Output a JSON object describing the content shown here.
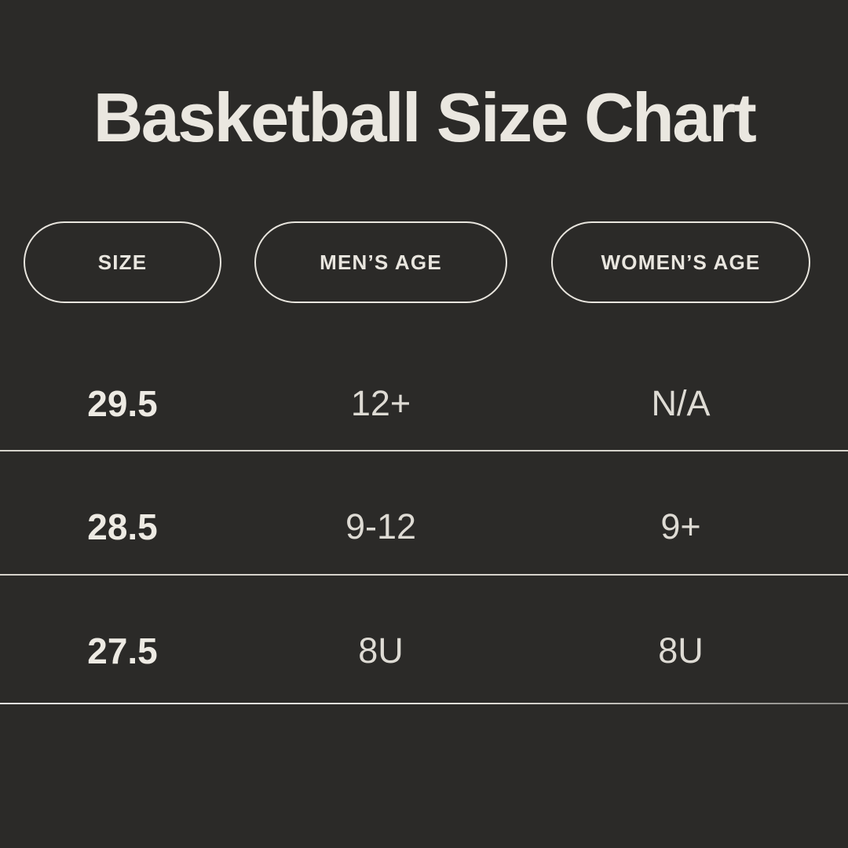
{
  "title": "Basketball Size Chart",
  "columns": [
    {
      "id": "size",
      "label": "SIZE"
    },
    {
      "id": "mens_age",
      "label": "MEN’S AGE"
    },
    {
      "id": "womens_age",
      "label": "WOMEN’S AGE"
    }
  ],
  "rows": [
    {
      "size": "29.5",
      "mens_age": "12+",
      "womens_age": "N/A"
    },
    {
      "size": "28.5",
      "mens_age": "9-12",
      "womens_age": "9+"
    },
    {
      "size": "27.5",
      "mens_age": "8U",
      "womens_age": "8U"
    }
  ],
  "colors": {
    "background": "#2b2a28",
    "title_text": "#eae7e0",
    "pill_border": "#e8e5de",
    "pill_text": "#e9e6df",
    "size_value_text": "#edeae3",
    "value_text": "#dedbd4",
    "divider": "#d6d3cc"
  },
  "chart_data": {
    "type": "table",
    "title": "Basketball Size Chart",
    "columns": [
      "SIZE",
      "MEN’S AGE",
      "WOMEN’S AGE"
    ],
    "rows": [
      [
        "29.5",
        "12+",
        "N/A"
      ],
      [
        "28.5",
        "9-12",
        "9+"
      ],
      [
        "27.5",
        "8U",
        "8U"
      ]
    ],
    "layout_hints": {
      "header_style": "outlined-pill",
      "row_dividers": true,
      "theme": "dark"
    }
  }
}
